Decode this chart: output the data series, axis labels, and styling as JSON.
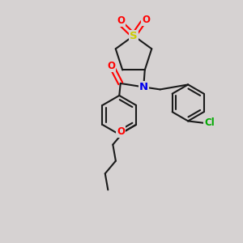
{
  "bg_color": "#d6d2d2",
  "bond_color": "#1a1a1a",
  "atom_colors": {
    "S": "#cccc00",
    "O": "#ff0000",
    "N": "#0000ee",
    "Cl": "#00aa00",
    "C": "#1a1a1a"
  },
  "bond_width": 1.5,
  "font_size": 8.5,
  "figsize": [
    3.0,
    3.0
  ],
  "dpi": 100,
  "xlim": [
    0,
    10
  ],
  "ylim": [
    0,
    10
  ]
}
